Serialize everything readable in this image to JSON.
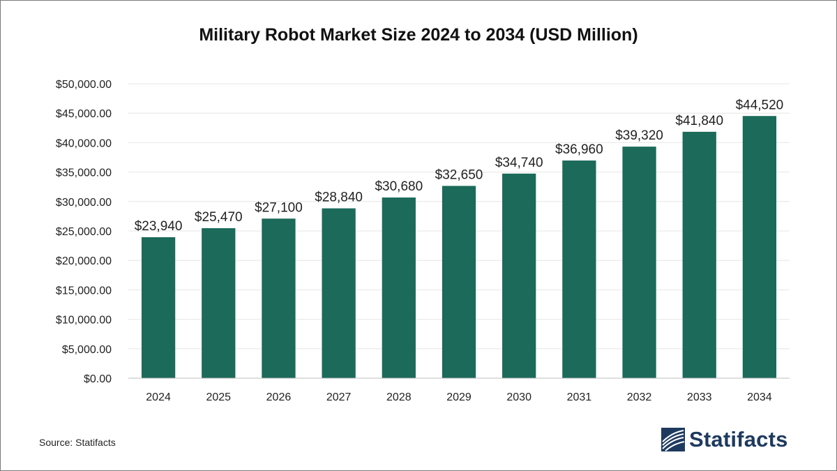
{
  "chart_data": {
    "type": "bar",
    "title": "Military Robot Market Size 2024 to 2034 (USD Million)",
    "categories": [
      "2024",
      "2025",
      "2026",
      "2027",
      "2028",
      "2029",
      "2030",
      "2031",
      "2032",
      "2033",
      "2034"
    ],
    "values": [
      23940,
      25470,
      27100,
      28840,
      30680,
      32650,
      34740,
      36960,
      39320,
      41840,
      44520
    ],
    "data_labels": [
      "$23,940",
      "$25,470",
      "$27,100",
      "$28,840",
      "$30,680",
      "$32,650",
      "$34,740",
      "$36,960",
      "$39,320",
      "$41,840",
      "$44,520"
    ],
    "y_ticks": [
      0,
      5000,
      10000,
      15000,
      20000,
      25000,
      30000,
      35000,
      40000,
      45000,
      50000
    ],
    "y_tick_labels": [
      "$0.00",
      "$5,000.00",
      "$10,000.00",
      "$15,000.00",
      "$20,000.00",
      "$25,000.00",
      "$30,000.00",
      "$35,000.00",
      "$40,000.00",
      "$45,000.00",
      "$50,000.00"
    ],
    "ylim": [
      0,
      50000
    ],
    "xlabel": "",
    "ylabel": "",
    "grid": true,
    "legend": "none",
    "bar_color": "#1b6a5a",
    "grid_color": "#e6e6e6"
  },
  "footer": {
    "source": "Source: Statifacts",
    "logo_text": "Statifacts",
    "logo_color": "#1e3a5f"
  }
}
